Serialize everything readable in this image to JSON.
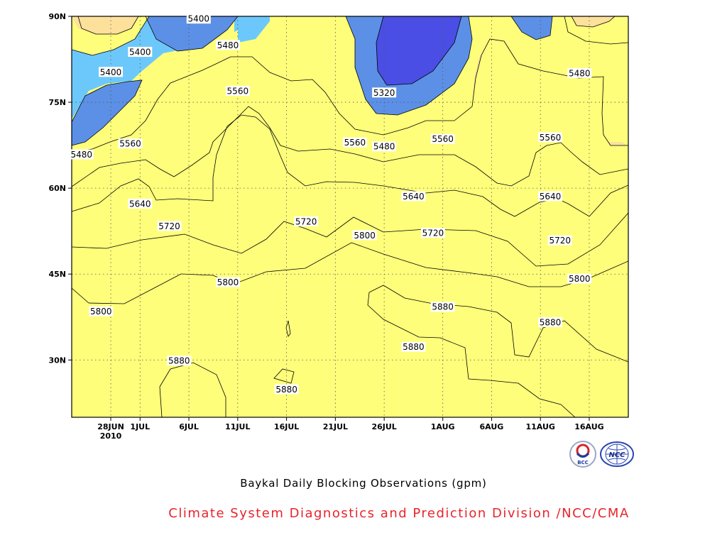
{
  "chart_data": {
    "type": "heatmap",
    "title": "Baykal Daily Blocking Observations (gpm)",
    "xlabel": "",
    "ylabel": "",
    "x_ticks": [
      "28JUN",
      "1JUL",
      "6JUL",
      "11JUL",
      "16JUL",
      "21JUL",
      "26JUL",
      "1AUG",
      "6AUG",
      "11AUG",
      "16AUG"
    ],
    "x_year_label": "2010",
    "y_ticks": [
      "30N",
      "45N",
      "60N",
      "75N",
      "90N"
    ],
    "y_tick_values": [
      30,
      45,
      60,
      75,
      90
    ],
    "x_range": [
      "24JUN2010",
      "20AUG2010"
    ],
    "ylim": [
      20,
      90
    ],
    "grid": true,
    "contour_levels": [
      5320,
      5400,
      5480,
      5560,
      5640,
      5720,
      5800,
      5880
    ],
    "level_colors": {
      "above_5880": "#f03849",
      "5800_5880": "#f4707a",
      "5720_5800": "#fd7a4b",
      "5640_5720": "#fca76a",
      "5560_5640": "#fde19b",
      "5480_5560": "#fefe7b",
      "5400_5480": "#6cc8fb",
      "5320_5400": "#5c90e6",
      "below_5320": "#4a4ee4"
    },
    "contour_labels": [
      {
        "text": "5400",
        "day": "7JUL",
        "lat": 89.6
      },
      {
        "text": "5400",
        "day": "1JUL",
        "lat": 83.8
      },
      {
        "text": "5400",
        "day": "28JUN",
        "lat": 80.3
      },
      {
        "text": "5480",
        "day": "10JUL",
        "lat": 85.0
      },
      {
        "text": "5480",
        "day": "25JUN",
        "lat": 65.9
      },
      {
        "text": "5480",
        "day": "26JUL",
        "lat": 67.3
      },
      {
        "text": "5480",
        "day": "15AUG",
        "lat": 80.1
      },
      {
        "text": "5320",
        "day": "26JUL",
        "lat": 76.7
      },
      {
        "text": "5560",
        "day": "11JUL",
        "lat": 77.0
      },
      {
        "text": "5560",
        "day": "30JUN",
        "lat": 67.8
      },
      {
        "text": "5560",
        "day": "23JUL",
        "lat": 68.0
      },
      {
        "text": "5560",
        "day": "1AUG",
        "lat": 68.6
      },
      {
        "text": "5560",
        "day": "12AUG",
        "lat": 68.9
      },
      {
        "text": "5640",
        "day": "1JUL",
        "lat": 57.3
      },
      {
        "text": "5640",
        "day": "29JUL",
        "lat": 58.6
      },
      {
        "text": "5640",
        "day": "12AUG",
        "lat": 58.6
      },
      {
        "text": "5720",
        "day": "4JUL",
        "lat": 53.4
      },
      {
        "text": "5720",
        "day": "18JUL",
        "lat": 54.2
      },
      {
        "text": "5720",
        "day": "31JUL",
        "lat": 52.2
      },
      {
        "text": "5720",
        "day": "13AUG",
        "lat": 50.9
      },
      {
        "text": "5800",
        "day": "24JUL",
        "lat": 51.8
      },
      {
        "text": "5800",
        "day": "10JUL",
        "lat": 43.6
      },
      {
        "text": "5800",
        "day": "27JUN",
        "lat": 38.5
      },
      {
        "text": "5800",
        "day": "15AUG",
        "lat": 44.2
      },
      {
        "text": "5880",
        "day": "1AUG",
        "lat": 39.3
      },
      {
        "text": "5880",
        "day": "29JUL",
        "lat": 32.3
      },
      {
        "text": "5880",
        "day": "12AUG",
        "lat": 36.6
      },
      {
        "text": "5880",
        "day": "5JUL",
        "lat": 29.9
      },
      {
        "text": "5880",
        "day": "16JUL",
        "lat": 24.9
      }
    ]
  },
  "footer": {
    "title": "Baykal Daily Blocking Observations (gpm)",
    "credit": "Climate System Diagnostics and Prediction Division /NCC/CMA",
    "logo_left_text": "BCC",
    "logo_right_text": "NCC"
  }
}
